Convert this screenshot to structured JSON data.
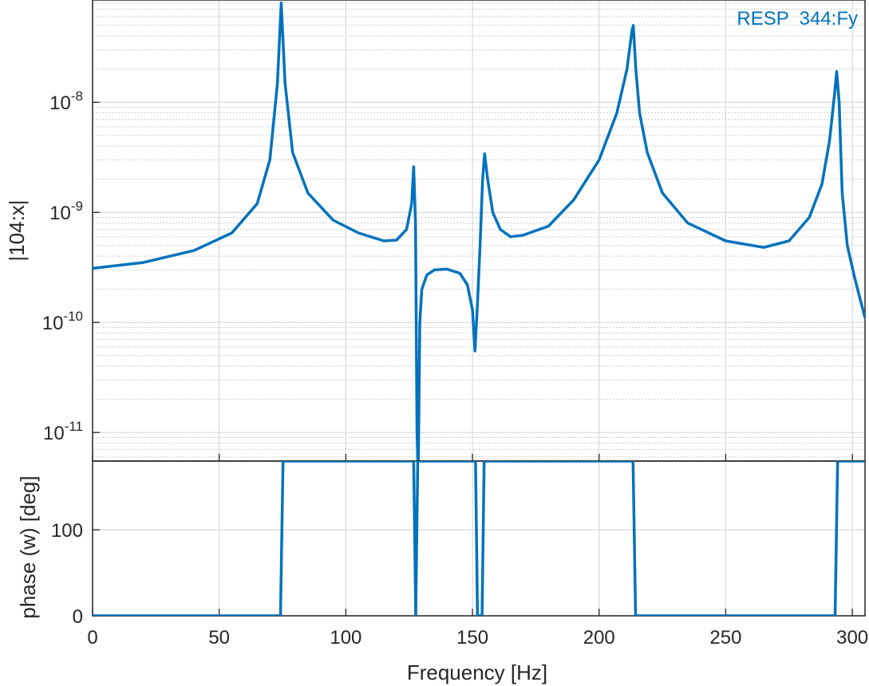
{
  "colors": {
    "series": "#0072BD",
    "axis": "#262626",
    "grid": "#d9d9d9",
    "minor_grid": "#e6e6e6"
  },
  "chart_data": [
    {
      "type": "line",
      "yscale": "log",
      "ylabel": "|104:x|",
      "xlim": [
        0,
        305
      ],
      "ylim": [
        5.5e-12,
        8.5e-08
      ],
      "grid": true,
      "minor_grid": true,
      "legend_placement": "top-right",
      "legend": [
        "RESP  344:Fy"
      ],
      "xticks": [
        0,
        50,
        100,
        150,
        200,
        250,
        300
      ],
      "yticks": [
        {
          "value": 1e-11,
          "base": "10",
          "exp": "-11"
        },
        {
          "value": 1e-10,
          "base": "10",
          "exp": "-10"
        },
        {
          "value": 1e-09,
          "base": "10",
          "exp": "-9"
        },
        {
          "value": 1e-08,
          "base": "10",
          "exp": "-8"
        }
      ],
      "series": [
        {
          "name": "RESP  344:Fy",
          "x": [
            0,
            20,
            40,
            55,
            65,
            70,
            73,
            74.5,
            76,
            79,
            85,
            95,
            105,
            115,
            120,
            124,
            126,
            126.8,
            127.5,
            128.1,
            128.6,
            129.2,
            130,
            132,
            135,
            140,
            145,
            148,
            150,
            151,
            152,
            153,
            154,
            154.8,
            156,
            158,
            161,
            165,
            170,
            180,
            190,
            200,
            207,
            211,
            213,
            213.5,
            214.5,
            216,
            219,
            225,
            235,
            250,
            265,
            275,
            283,
            288,
            291,
            293,
            293.8,
            294.8,
            296,
            298,
            301,
            305
          ],
          "y": [
            3.1e-10,
            3.5e-10,
            4.5e-10,
            6.5e-10,
            1.2e-09,
            3e-09,
            1.5e-08,
            8e-08,
            1.5e-08,
            3.5e-09,
            1.5e-09,
            8.5e-10,
            6.5e-10,
            5.5e-10,
            5.6e-10,
            7e-10,
            1.2e-09,
            2.6e-09,
            8e-10,
            1e-11,
            4e-12,
            1e-10,
            2e-10,
            2.7e-10,
            3e-10,
            3.05e-10,
            2.8e-10,
            2.2e-10,
            1.3e-10,
            5.5e-11,
            1.5e-10,
            5e-10,
            2e-09,
            3.4e-09,
            2e-09,
            1e-09,
            7e-10,
            6e-10,
            6.2e-10,
            7.5e-10,
            1.3e-09,
            3e-09,
            8e-09,
            2e-08,
            4.5e-08,
            5e-08,
            2e-08,
            8e-09,
            3.5e-09,
            1.5e-09,
            8e-10,
            5.5e-10,
            4.8e-10,
            5.5e-10,
            9e-10,
            1.8e-09,
            4.5e-09,
            1.2e-08,
            1.9e-08,
            1e-08,
            1.5e-09,
            5e-10,
            2.5e-10,
            1.1e-10
          ]
        }
      ]
    },
    {
      "type": "line",
      "yscale": "linear",
      "xlabel": "Frequency [Hz]",
      "ylabel": "phase (w) [deg]",
      "xlim": [
        0,
        305
      ],
      "ylim": [
        0,
        180
      ],
      "grid": true,
      "xticks": [
        0,
        50,
        100,
        150,
        200,
        250,
        300
      ],
      "yticks": [
        0,
        100
      ],
      "series": [
        {
          "x": [
            0,
            74.2,
            75.2,
            126.8,
            127.6,
            128.4,
            151.2,
            152.0,
            153.8,
            154.6,
            213.4,
            214.4,
            293.2,
            294.2,
            305
          ],
          "y": [
            0,
            0,
            180,
            180,
            0,
            180,
            180,
            0,
            0,
            180,
            180,
            0,
            0,
            180,
            180
          ]
        }
      ]
    }
  ]
}
